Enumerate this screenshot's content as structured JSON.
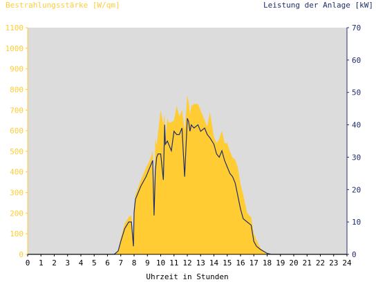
{
  "chart_data": {
    "type": "area",
    "title_left": "Bestrahlungsstärke [W/qm]",
    "title_right": "Leistung der Anlage [kW]",
    "xlabel": "Uhrzeit in Stunden",
    "xlim": [
      0,
      24
    ],
    "x_ticks": [
      "0",
      "1",
      "2",
      "3",
      "4",
      "5",
      "6",
      "7",
      "8",
      "9",
      "10",
      "11",
      "12",
      "13",
      "14",
      "15",
      "16",
      "17",
      "18",
      "19",
      "20",
      "21",
      "22",
      "23",
      "24"
    ],
    "y_left": {
      "range": [
        0,
        1100
      ],
      "ticks": [
        "0",
        "100",
        "200",
        "300",
        "400",
        "500",
        "600",
        "700",
        "800",
        "900",
        "1000",
        "1100"
      ]
    },
    "y_right": {
      "range": [
        0,
        70
      ],
      "ticks": [
        "0",
        "10",
        "20",
        "30",
        "40",
        "50",
        "60",
        "70"
      ]
    },
    "grid": false,
    "colors": {
      "plot_background": "#dcdcdc",
      "irradiance_fill": "#ffcc33",
      "power_line": "#1e2d6b",
      "left_axis_text": "#ffcc33",
      "right_axis_text": "#1e2d6b",
      "xlabel_text": "#000000"
    },
    "series": [
      {
        "axis": "left",
        "style": "area",
        "x": [
          0,
          6.5,
          6.8,
          7.0,
          7.3,
          7.6,
          7.8,
          7.95,
          8.0,
          8.1,
          8.5,
          8.9,
          9.2,
          9.4,
          9.5,
          9.6,
          9.7,
          9.8,
          10.0,
          10.2,
          10.3,
          10.35,
          10.5,
          10.6,
          10.8,
          11.0,
          11.2,
          11.4,
          11.6,
          11.8,
          12.0,
          12.1,
          12.2,
          12.3,
          12.5,
          12.8,
          13.0,
          13.3,
          13.5,
          13.7,
          14.0,
          14.2,
          14.4,
          14.6,
          14.8,
          15.0,
          15.2,
          15.4,
          15.6,
          15.8,
          16.0,
          16.2,
          16.5,
          16.8,
          17.0,
          17.2,
          17.5,
          17.8,
          18.0,
          18.3,
          18.6,
          18.8,
          19.0,
          24
        ],
        "y": [
          0,
          0,
          20,
          80,
          150,
          180,
          190,
          80,
          210,
          290,
          360,
          420,
          460,
          500,
          300,
          560,
          530,
          590,
          700,
          630,
          680,
          560,
          660,
          640,
          640,
          650,
          720,
          670,
          700,
          600,
          770,
          740,
          680,
          720,
          730,
          730,
          700,
          650,
          620,
          690,
          570,
          540,
          560,
          600,
          540,
          540,
          500,
          470,
          460,
          420,
          340,
          290,
          200,
          180,
          100,
          70,
          30,
          15,
          5,
          2,
          0,
          0,
          0,
          0
        ]
      },
      {
        "axis": "right",
        "style": "line",
        "x": [
          0,
          6.5,
          6.8,
          7.0,
          7.3,
          7.6,
          7.8,
          7.95,
          8.0,
          8.1,
          8.5,
          8.9,
          9.2,
          9.4,
          9.5,
          9.6,
          9.7,
          9.8,
          10.0,
          10.2,
          10.3,
          10.35,
          10.5,
          10.6,
          10.8,
          11.0,
          11.2,
          11.4,
          11.6,
          11.8,
          12.0,
          12.1,
          12.2,
          12.3,
          12.5,
          12.8,
          13.0,
          13.3,
          13.5,
          13.7,
          14.0,
          14.2,
          14.4,
          14.6,
          14.8,
          15.0,
          15.2,
          15.4,
          15.6,
          15.8,
          16.0,
          16.2,
          16.5,
          16.8,
          17.0,
          17.2,
          17.5,
          17.8,
          18.0,
          18.3,
          18.6,
          18.8,
          19.0,
          24
        ],
        "y": [
          0,
          0,
          1,
          4,
          8,
          10,
          10,
          2.5,
          13,
          17,
          21,
          24,
          27,
          29,
          12,
          26,
          30,
          31,
          31,
          23,
          40,
          34,
          35,
          34,
          32,
          38,
          37,
          37,
          39,
          24,
          42,
          41,
          38,
          40,
          39,
          40,
          38,
          39,
          37,
          36,
          34,
          31,
          30,
          32,
          29,
          27,
          25,
          24,
          22,
          18,
          14,
          11,
          10,
          9,
          4,
          2.5,
          1.5,
          0.8,
          0.3,
          0,
          0,
          0,
          0,
          0
        ]
      }
    ]
  }
}
